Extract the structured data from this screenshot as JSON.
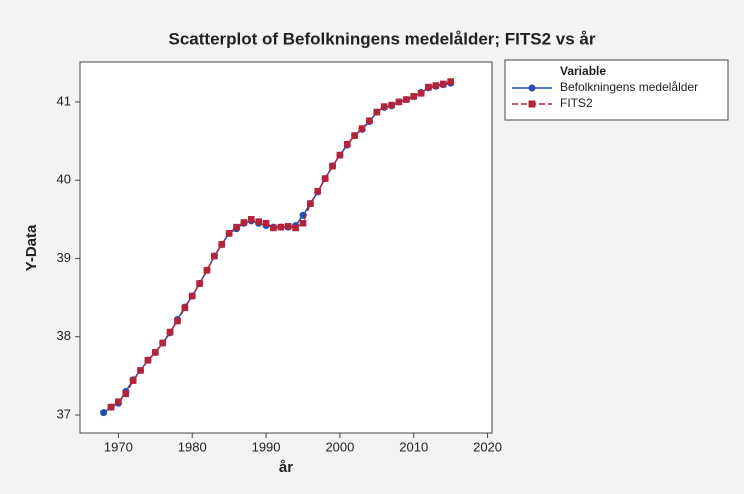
{
  "chart_data": {
    "type": "scatter",
    "title": "Scatterplot of Befolkningens medelålder; FITS2 vs år",
    "x_label": "år",
    "y_label": "Y-Data",
    "legend_title": "Variable",
    "legend": "right",
    "x": [
      1968,
      1969,
      1970,
      1971,
      1972,
      1973,
      1974,
      1975,
      1976,
      1977,
      1978,
      1979,
      1980,
      1981,
      1982,
      1983,
      1984,
      1985,
      1986,
      1987,
      1988,
      1989,
      1990,
      1991,
      1992,
      1993,
      1994,
      1995,
      1996,
      1997,
      1998,
      1999,
      2000,
      2001,
      2002,
      2003,
      2004,
      2005,
      2006,
      2007,
      2008,
      2009,
      2010,
      2011,
      2012,
      2013,
      2014,
      2015
    ],
    "series": [
      {
        "name": "Befolkningens medelålder",
        "color": "#1f4fb4",
        "marker": "circle",
        "dashed": false,
        "values": [
          37.03,
          37.1,
          37.15,
          37.3,
          37.45,
          37.57,
          37.7,
          37.8,
          37.92,
          38.05,
          38.22,
          38.38,
          38.52,
          38.68,
          38.85,
          39.03,
          39.18,
          39.32,
          39.38,
          39.45,
          39.48,
          39.45,
          39.42,
          39.4,
          39.4,
          39.4,
          39.42,
          39.55,
          39.7,
          39.85,
          40.02,
          40.18,
          40.32,
          40.45,
          40.57,
          40.65,
          40.75,
          40.87,
          40.93,
          40.95,
          41.0,
          41.03,
          41.07,
          41.12,
          41.18,
          41.2,
          41.22,
          41.24
        ]
      },
      {
        "name": "FITS2",
        "color": "#b3243a",
        "marker": "square",
        "dashed": true,
        "values": [
          null,
          37.1,
          37.17,
          37.27,
          37.44,
          37.57,
          37.7,
          37.8,
          37.92,
          38.06,
          38.2,
          38.37,
          38.52,
          38.68,
          38.85,
          39.03,
          39.18,
          39.32,
          39.4,
          39.46,
          39.5,
          39.47,
          39.45,
          39.39,
          39.4,
          39.41,
          39.39,
          39.45,
          39.7,
          39.86,
          40.02,
          40.18,
          40.32,
          40.46,
          40.57,
          40.66,
          40.76,
          40.87,
          40.94,
          40.96,
          41.0,
          41.03,
          41.07,
          41.11,
          41.19,
          41.21,
          41.23,
          41.26
        ]
      }
    ],
    "xlim": [
      1964.8,
      2020.6
    ],
    "xticks": [
      1970,
      1980,
      1990,
      2000,
      2010,
      2020
    ],
    "ylim": [
      36.77,
      41.51
    ],
    "yticks": [
      37,
      38,
      39,
      40,
      41
    ]
  }
}
